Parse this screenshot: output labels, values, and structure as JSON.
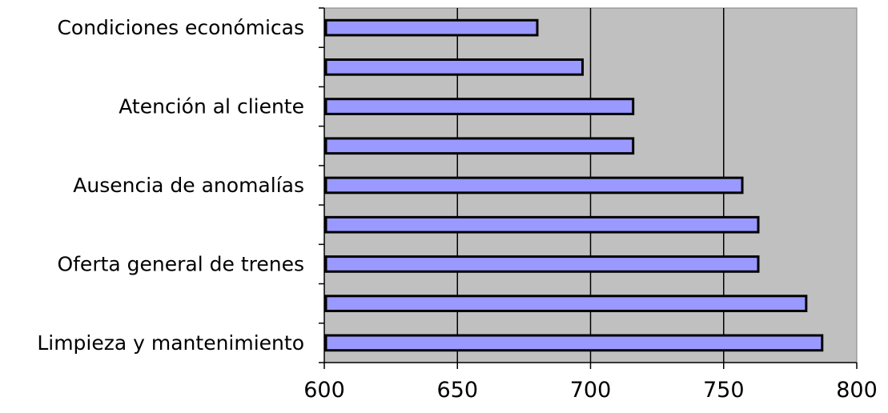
{
  "chart_data": {
    "type": "bar",
    "orientation": "horizontal",
    "categories": [
      "Condiciones económicas",
      "",
      "Atención al cliente",
      "",
      "Ausencia de anomalías",
      "",
      "Oferta general de trenes",
      "",
      "Limpieza y mantenimiento"
    ],
    "values": [
      680,
      697,
      716,
      716,
      757,
      763,
      763,
      781,
      787
    ],
    "xlim": [
      600,
      800
    ],
    "xticks": [
      "600",
      "650",
      "700",
      "750",
      "800"
    ],
    "xtick_values": [
      600,
      650,
      700,
      750,
      800
    ],
    "title": "",
    "xlabel": "",
    "ylabel": "",
    "grid": "vertical",
    "legend": "none",
    "colors": {
      "bar_fill": "#9999ff",
      "bar_stroke": "#000000",
      "plot_background": "#c0c0c0",
      "gridline": "#000000"
    }
  }
}
